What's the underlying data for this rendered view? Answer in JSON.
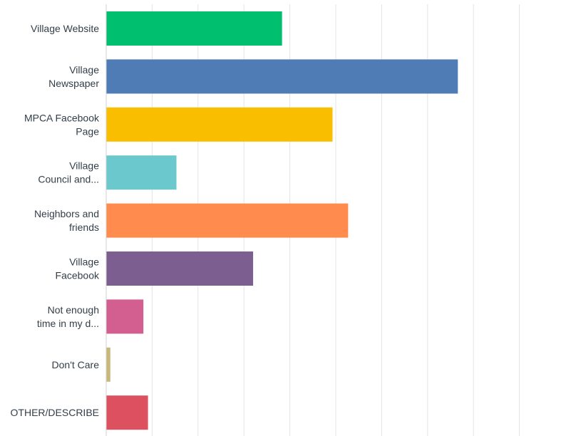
{
  "chart_data": {
    "type": "bar",
    "orientation": "horizontal",
    "grid": true,
    "xlim": [
      0,
      100
    ],
    "categories": [
      [
        "Village Website"
      ],
      [
        "Village",
        "Newspaper"
      ],
      [
        "MPCA Facebook",
        "Page"
      ],
      [
        "Village",
        "Council and..."
      ],
      [
        "Neighbors and",
        "friends"
      ],
      [
        "Village",
        "Facebook"
      ],
      [
        "Not enough",
        "time in my d..."
      ],
      [
        "Don't Care"
      ],
      [
        "OTHER/DESCRIBE"
      ]
    ],
    "values": [
      38.3,
      76.6,
      49.3,
      15.3,
      52.7,
      32.0,
      8.1,
      0.9,
      9.1
    ],
    "colors": [
      "#00bf6f",
      "#507cb6",
      "#f9be00",
      "#6bc8cd",
      "#ff8b4f",
      "#7d5e90",
      "#d25f90",
      "#c7b879",
      "#dc505f"
    ]
  }
}
